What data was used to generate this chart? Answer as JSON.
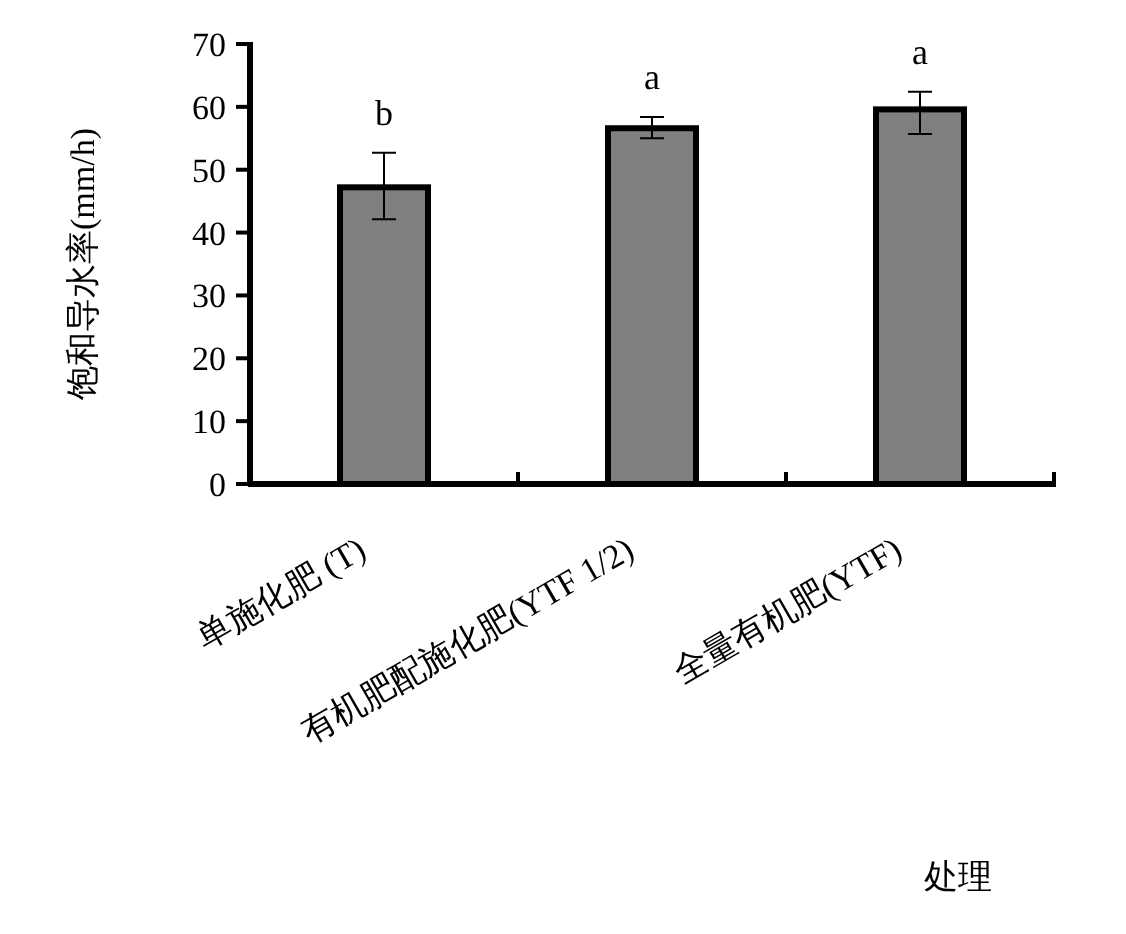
{
  "chart_data": {
    "type": "bar",
    "ylabel": "饱和导水率(mm/h)",
    "xlabel": "处理",
    "categories": [
      "单施化肥 (T)",
      "有机肥配施化肥(YTF 1/2)",
      "全量有机肥(YTF)"
    ],
    "values": [
      47.2,
      56.6,
      59.6
    ],
    "errors": [
      [
        42.1,
        52.7
      ],
      [
        55.0,
        58.4
      ],
      [
        55.7,
        62.4
      ]
    ],
    "color": "#808080",
    "ylim": [
      0,
      70
    ],
    "yticks": [
      0,
      10,
      20,
      30,
      40,
      50,
      60,
      70
    ],
    "annotations": [
      "b",
      "a",
      "a"
    ],
    "grid": false
  }
}
